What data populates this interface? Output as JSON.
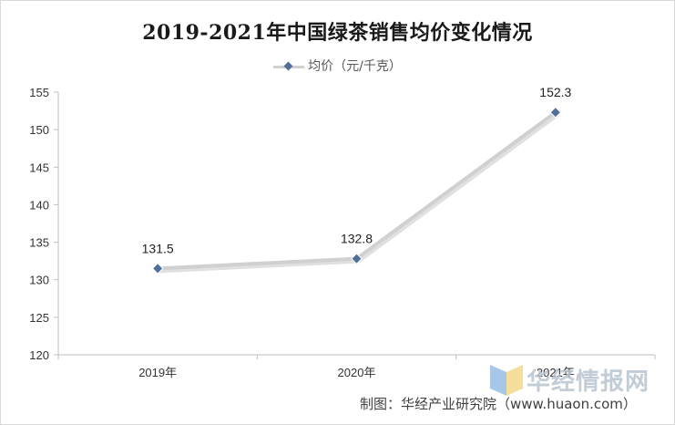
{
  "chart_data": {
    "type": "line",
    "title": "2019-2021年中国绿茶销售均价变化情况",
    "categories": [
      "2019年",
      "2020年",
      "2021年"
    ],
    "series": [
      {
        "name": "均价（元/千克）",
        "values": [
          131.5,
          132.8,
          152.3
        ],
        "color": "#d0d0d0",
        "marker_color": "#4f6f9a"
      }
    ],
    "data_labels": [
      "131.5",
      "132.8",
      "152.3"
    ],
    "ylim": [
      120,
      155
    ],
    "yticks": [
      120,
      125,
      130,
      135,
      140,
      145,
      150,
      155
    ],
    "xlabel": "",
    "ylabel": "",
    "grid": false,
    "legend_position": "top-center"
  },
  "watermark": {
    "text": "华经情报网",
    "logo_icon": "huajing-logo-icon"
  },
  "source": {
    "text": "制图：华经产业研究院（www.huaon.com）"
  }
}
